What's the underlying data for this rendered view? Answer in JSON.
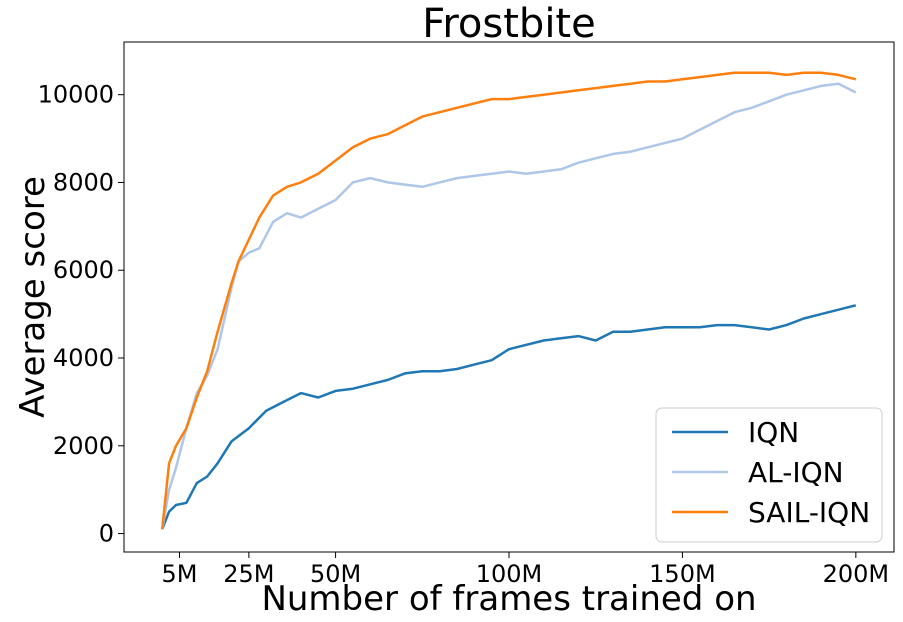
{
  "chart_data": {
    "type": "line",
    "title": "Frostbite",
    "xlabel": "Number of frames trained on",
    "ylabel": "Average score",
    "x_ticks": [
      {
        "value": 5,
        "label": "5M"
      },
      {
        "value": 25,
        "label": "25M"
      },
      {
        "value": 50,
        "label": "50M"
      },
      {
        "value": 100,
        "label": "100M"
      },
      {
        "value": 150,
        "label": "150M"
      },
      {
        "value": 200,
        "label": "200M"
      }
    ],
    "y_ticks": [
      {
        "value": 0,
        "label": "0"
      },
      {
        "value": 2000,
        "label": "2000"
      },
      {
        "value": 4000,
        "label": "4000"
      },
      {
        "value": 6000,
        "label": "6000"
      },
      {
        "value": 8000,
        "label": "8000"
      },
      {
        "value": 10000,
        "label": "10000"
      }
    ],
    "xlim": [
      -11,
      211
    ],
    "ylim": [
      -420,
      11200
    ],
    "grid": false,
    "legend_position": "bottom-right",
    "series": [
      {
        "name": "IQN",
        "color": "#1f77b4",
        "x": [
          0,
          2,
          4,
          7,
          10,
          13,
          16,
          20,
          25,
          30,
          35,
          40,
          45,
          50,
          55,
          60,
          65,
          70,
          75,
          80,
          85,
          90,
          95,
          100,
          105,
          110,
          115,
          120,
          125,
          130,
          135,
          140,
          145,
          150,
          155,
          160,
          165,
          170,
          175,
          180,
          185,
          190,
          195,
          200
        ],
        "values": [
          100,
          500,
          650,
          700,
          1150,
          1300,
          1600,
          2100,
          2400,
          2800,
          3000,
          3200,
          3100,
          3250,
          3300,
          3400,
          3500,
          3650,
          3700,
          3700,
          3750,
          3850,
          3950,
          4200,
          4300,
          4400,
          4450,
          4500,
          4400,
          4600,
          4600,
          4650,
          4700,
          4700,
          4700,
          4750,
          4750,
          4700,
          4650,
          4750,
          4900,
          5000,
          5100,
          5200
        ]
      },
      {
        "name": "AL-IQN",
        "color": "#aec7e8",
        "x": [
          0,
          2,
          4,
          7,
          10,
          13,
          16,
          20,
          22,
          25,
          28,
          32,
          36,
          40,
          45,
          50,
          55,
          60,
          65,
          70,
          75,
          80,
          85,
          90,
          95,
          100,
          105,
          110,
          115,
          120,
          125,
          130,
          135,
          140,
          145,
          150,
          155,
          160,
          165,
          170,
          175,
          180,
          185,
          190,
          195,
          200
        ],
        "values": [
          100,
          1000,
          1500,
          2400,
          3200,
          3600,
          4200,
          5600,
          6200,
          6400,
          6500,
          7100,
          7300,
          7200,
          7400,
          7600,
          8000,
          8100,
          8000,
          7950,
          7900,
          8000,
          8100,
          8150,
          8200,
          8250,
          8200,
          8250,
          8300,
          8450,
          8550,
          8650,
          8700,
          8800,
          8900,
          9000,
          9200,
          9400,
          9600,
          9700,
          9850,
          10000,
          10100,
          10200,
          10250,
          10050
        ]
      },
      {
        "name": "SAIL-IQN",
        "color": "#ff7f0e",
        "x": [
          0,
          2,
          4,
          7,
          10,
          13,
          16,
          20,
          22,
          25,
          28,
          32,
          36,
          40,
          45,
          50,
          55,
          60,
          65,
          70,
          75,
          80,
          85,
          90,
          95,
          100,
          105,
          110,
          115,
          120,
          125,
          130,
          135,
          140,
          145,
          150,
          155,
          160,
          165,
          170,
          175,
          180,
          185,
          190,
          195,
          200
        ],
        "values": [
          100,
          1600,
          2000,
          2400,
          3100,
          3700,
          4600,
          5700,
          6200,
          6700,
          7200,
          7700,
          7900,
          8000,
          8200,
          8500,
          8800,
          9000,
          9100,
          9300,
          9500,
          9600,
          9700,
          9800,
          9900,
          9900,
          9950,
          10000,
          10050,
          10100,
          10150,
          10200,
          10250,
          10300,
          10300,
          10350,
          10400,
          10450,
          10500,
          10500,
          10500,
          10450,
          10500,
          10500,
          10450,
          10350
        ]
      }
    ]
  }
}
